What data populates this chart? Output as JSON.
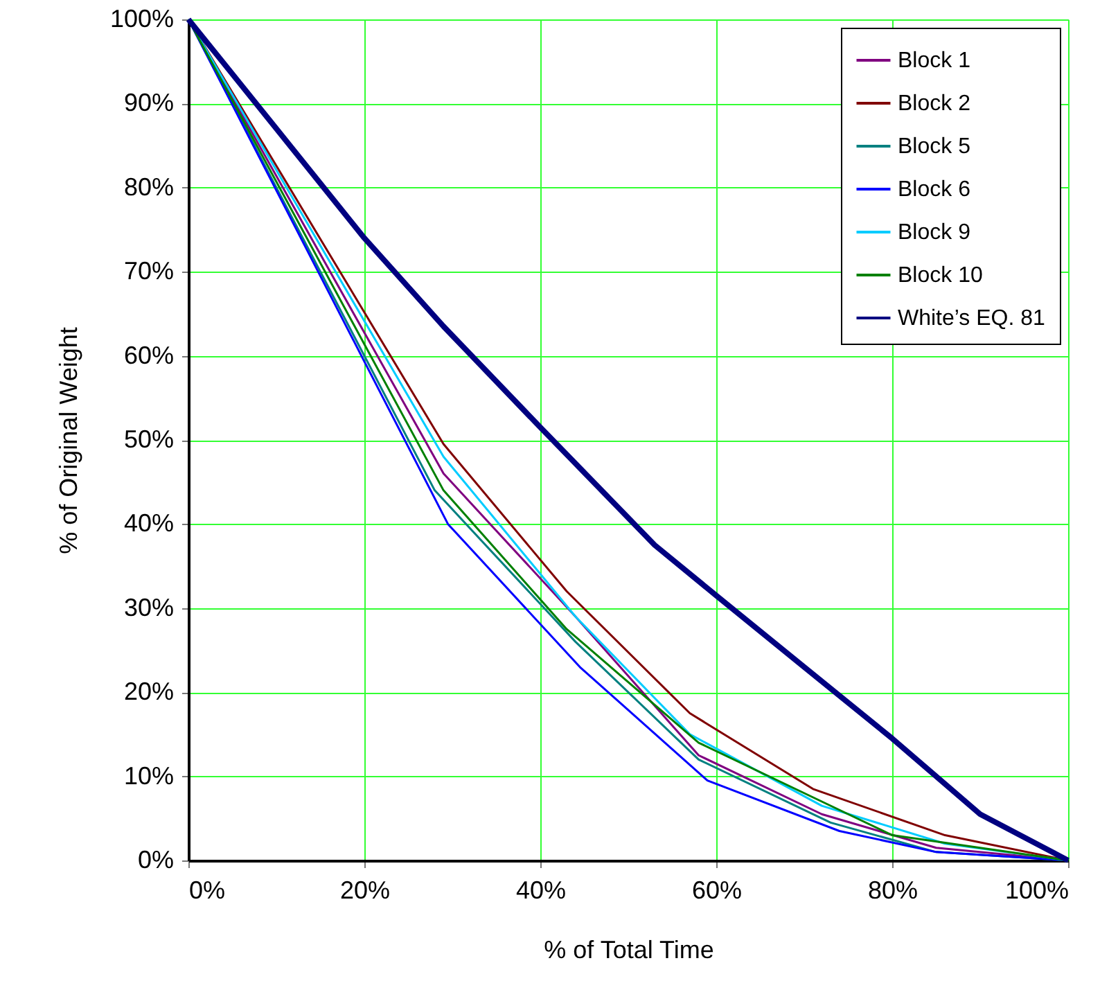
{
  "chart_data": {
    "type": "line",
    "xlabel": "% of Total Time",
    "ylabel": "% of Original Weight",
    "xlim": [
      0,
      100
    ],
    "ylim": [
      0,
      100
    ],
    "xticks": [
      {
        "value": 0,
        "label": "0%"
      },
      {
        "value": 20,
        "label": "20%"
      },
      {
        "value": 40,
        "label": "40%"
      },
      {
        "value": 60,
        "label": "60%"
      },
      {
        "value": 80,
        "label": "80%"
      },
      {
        "value": 100,
        "label": "100%"
      }
    ],
    "yticks": [
      {
        "value": 0,
        "label": "0%"
      },
      {
        "value": 10,
        "label": "10%"
      },
      {
        "value": 20,
        "label": "20%"
      },
      {
        "value": 30,
        "label": "30%"
      },
      {
        "value": 40,
        "label": "40%"
      },
      {
        "value": 50,
        "label": "50%"
      },
      {
        "value": 60,
        "label": "60%"
      },
      {
        "value": 70,
        "label": "70%"
      },
      {
        "value": 80,
        "label": "80%"
      },
      {
        "value": 90,
        "label": "90%"
      },
      {
        "value": 100,
        "label": "100%"
      }
    ],
    "grid": true,
    "legend": "top right",
    "marker": "none",
    "line_style": "solid",
    "series": [
      {
        "name": "Block 1",
        "color": "#800080",
        "x": [
          0,
          29,
          44,
          58,
          72,
          85,
          100
        ],
        "values": [
          100,
          46,
          29,
          12.5,
          5.5,
          1.5,
          0
        ]
      },
      {
        "name": "Block 2",
        "color": "#800000",
        "x": [
          0,
          29,
          43,
          57,
          71,
          86,
          100
        ],
        "values": [
          100,
          49.5,
          32,
          17.5,
          8.5,
          3,
          0
        ]
      },
      {
        "name": "Block 5",
        "color": "#008080",
        "x": [
          0,
          28,
          44,
          58,
          73,
          85,
          100
        ],
        "values": [
          100,
          44,
          26,
          12,
          4.5,
          1,
          0
        ]
      },
      {
        "name": "Block 6",
        "color": "#0000ff",
        "x": [
          0,
          29.5,
          44.5,
          59,
          74,
          85,
          100
        ],
        "values": [
          100,
          40,
          23,
          9.5,
          3.5,
          1,
          0
        ]
      },
      {
        "name": "Block 9",
        "color": "#00ccff",
        "x": [
          0,
          29,
          44,
          57,
          72,
          86,
          100
        ],
        "values": [
          100,
          48,
          29,
          15,
          6.5,
          2,
          0
        ]
      },
      {
        "name": "Block 10",
        "color": "#008000",
        "x": [
          0,
          29,
          43,
          58,
          72,
          80,
          100
        ],
        "values": [
          100,
          44,
          27.5,
          14,
          7,
          3,
          0
        ]
      },
      {
        "name": "White’s EQ. 81",
        "color": "#000080",
        "x": [
          0,
          10,
          20,
          29,
          40,
          53,
          60,
          70,
          80,
          90,
          100
        ],
        "values": [
          100,
          87,
          74,
          63.5,
          51.5,
          37.5,
          31.5,
          23,
          14.5,
          5.5,
          0
        ]
      }
    ]
  }
}
